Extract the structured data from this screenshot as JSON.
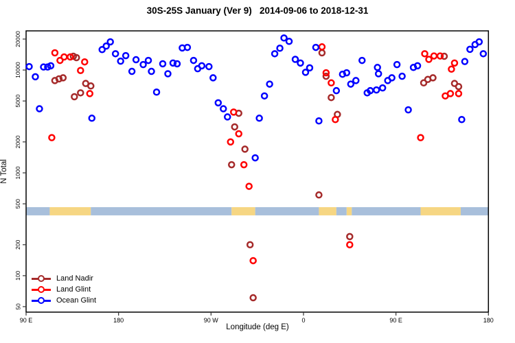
{
  "chart_data": {
    "type": "scatter",
    "title": "30S-25S January (Ver 9)   2014-09-06 to 2018-12-31",
    "xlabel": "Longitude (deg E)",
    "ylabel": "N Total",
    "y_axis": {
      "scale": "log",
      "range": [
        50,
        20000
      ],
      "ticks": [
        {
          "v": 50,
          "label": "50"
        },
        {
          "v": 100,
          "label": "100"
        },
        {
          "v": 200,
          "label": "200"
        },
        {
          "v": 500,
          "label": "500"
        },
        {
          "v": 1000,
          "label": "1000"
        },
        {
          "v": 2000,
          "label": "2000"
        },
        {
          "v": 5000,
          "label": "5000"
        },
        {
          "v": 10000,
          "label": "10000"
        },
        {
          "v": 20000,
          "label": "20000"
        }
      ]
    },
    "x_axis": {
      "note": "axis spans 450 deg of longitude, wrapping: 90E to 180 to 90W to 0 to 90E to 180",
      "range_axis_deg": [
        90,
        540
      ],
      "ticks": [
        {
          "deg": 90,
          "label": "90 E"
        },
        {
          "deg": 180,
          "label": "180"
        },
        {
          "deg": 270,
          "label": "90 W"
        },
        {
          "deg": 360,
          "label": "0"
        },
        {
          "deg": 450,
          "label": "90 E"
        },
        {
          "deg": 540,
          "label": "180"
        }
      ]
    },
    "land_ocean_strip": {
      "value_band": [
        386,
        464
      ],
      "colors": {
        "ocean": "#A8BFDB",
        "land": "#F6D683"
      },
      "segments": [
        {
          "from": 90,
          "to": 113,
          "surface": "ocean"
        },
        {
          "from": 113,
          "to": 153,
          "surface": "land"
        },
        {
          "from": 153,
          "to": 290,
          "surface": "ocean"
        },
        {
          "from": 290,
          "to": 313,
          "surface": "land"
        },
        {
          "from": 313,
          "to": 375,
          "surface": "ocean"
        },
        {
          "from": 375,
          "to": 392,
          "surface": "land"
        },
        {
          "from": 392,
          "to": 402,
          "surface": "ocean"
        },
        {
          "from": 402,
          "to": 407,
          "surface": "land"
        },
        {
          "from": 407,
          "to": 474,
          "surface": "ocean"
        },
        {
          "from": 474,
          "to": 513,
          "surface": "land"
        },
        {
          "from": 513,
          "to": 540,
          "surface": "ocean"
        }
      ]
    },
    "series": [
      {
        "name": "Land Nadir",
        "color": "#A52A2A",
        "points": [
          [
            118,
            7900
          ],
          [
            122,
            8200
          ],
          [
            126,
            8400
          ],
          [
            136,
            13600
          ],
          [
            139,
            13200
          ],
          [
            137,
            5500
          ],
          [
            143,
            6000
          ],
          [
            148,
            7400
          ],
          [
            153,
            7000
          ],
          [
            290,
            1200
          ],
          [
            293,
            2800
          ],
          [
            297,
            3800
          ],
          [
            303,
            1700
          ],
          [
            308,
            200
          ],
          [
            311,
            61
          ],
          [
            375,
            610
          ],
          [
            378,
            14700
          ],
          [
            382,
            8700
          ],
          [
            387,
            5400
          ],
          [
            393,
            3700
          ],
          [
            405,
            240
          ],
          [
            477,
            7500
          ],
          [
            481,
            8100
          ],
          [
            486,
            8400
          ],
          [
            497,
            13600
          ],
          [
            507,
            7400
          ],
          [
            511,
            6900
          ]
        ]
      },
      {
        "name": "Land Glint",
        "color": "#FF0000",
        "points": [
          [
            115,
            2200
          ],
          [
            118,
            14700
          ],
          [
            123,
            12400
          ],
          [
            127,
            13400
          ],
          [
            133,
            13400
          ],
          [
            143,
            9900
          ],
          [
            147,
            12000
          ],
          [
            152,
            5900
          ],
          [
            289,
            2000
          ],
          [
            292,
            3900
          ],
          [
            297,
            2400
          ],
          [
            302,
            1200
          ],
          [
            307,
            740
          ],
          [
            311,
            140
          ],
          [
            378,
            16800
          ],
          [
            382,
            9400
          ],
          [
            387,
            7500
          ],
          [
            391,
            3300
          ],
          [
            405,
            200
          ],
          [
            474,
            2200
          ],
          [
            478,
            14400
          ],
          [
            482,
            12700
          ],
          [
            487,
            13700
          ],
          [
            493,
            13700
          ],
          [
            498,
            5600
          ],
          [
            503,
            5900
          ],
          [
            504,
            10200
          ],
          [
            507,
            11700
          ],
          [
            511,
            5900
          ]
        ]
      },
      {
        "name": "Ocean Glint",
        "color": "#0000FF",
        "points": [
          [
            93,
            10800
          ],
          [
            99,
            8600
          ],
          [
            103,
            4200
          ],
          [
            107,
            10700
          ],
          [
            111,
            10700
          ],
          [
            114,
            11000
          ],
          [
            154,
            3400
          ],
          [
            164,
            15800
          ],
          [
            168,
            17100
          ],
          [
            172,
            18800
          ],
          [
            177,
            14400
          ],
          [
            182,
            12200
          ],
          [
            187,
            13800
          ],
          [
            193,
            9700
          ],
          [
            197,
            12600
          ],
          [
            204,
            11300
          ],
          [
            209,
            12400
          ],
          [
            212,
            9700
          ],
          [
            217,
            6100
          ],
          [
            223,
            11500
          ],
          [
            228,
            9200
          ],
          [
            233,
            11700
          ],
          [
            237,
            11500
          ],
          [
            242,
            16400
          ],
          [
            247,
            16600
          ],
          [
            253,
            12400
          ],
          [
            257,
            10300
          ],
          [
            261,
            11000
          ],
          [
            268,
            10800
          ],
          [
            272,
            8400
          ],
          [
            277,
            4800
          ],
          [
            282,
            4200
          ],
          [
            286,
            3500
          ],
          [
            313,
            1400
          ],
          [
            317,
            3400
          ],
          [
            322,
            5600
          ],
          [
            327,
            7300
          ],
          [
            332,
            14400
          ],
          [
            337,
            16300
          ],
          [
            341,
            20500
          ],
          [
            346,
            19000
          ],
          [
            352,
            12700
          ],
          [
            357,
            11700
          ],
          [
            362,
            9500
          ],
          [
            366,
            10500
          ],
          [
            372,
            16600
          ],
          [
            375,
            3200
          ],
          [
            392,
            6300
          ],
          [
            398,
            9100
          ],
          [
            402,
            9400
          ],
          [
            406,
            7300
          ],
          [
            411,
            7900
          ],
          [
            417,
            12400
          ],
          [
            422,
            6000
          ],
          [
            425,
            6300
          ],
          [
            431,
            6400
          ],
          [
            432,
            10600
          ],
          [
            433,
            9200
          ],
          [
            437,
            6700
          ],
          [
            442,
            7900
          ],
          [
            446,
            8400
          ],
          [
            451,
            11300
          ],
          [
            456,
            8700
          ],
          [
            462,
            4100
          ],
          [
            467,
            10600
          ],
          [
            471,
            11000
          ],
          [
            514,
            3300
          ],
          [
            517,
            12100
          ],
          [
            522,
            15900
          ],
          [
            527,
            17700
          ],
          [
            531,
            18800
          ],
          [
            535,
            14400
          ]
        ]
      }
    ]
  }
}
